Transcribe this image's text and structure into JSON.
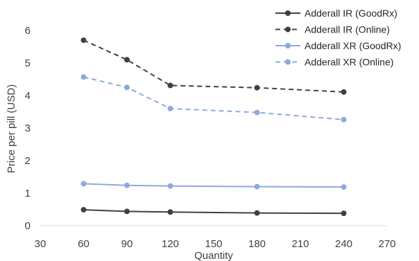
{
  "chart_data": {
    "type": "line",
    "title": "",
    "xlabel": "Quantity",
    "ylabel": "Price per pill (USD)",
    "xlim": [
      30,
      270
    ],
    "ylim": [
      0,
      6
    ],
    "x_ticks": [
      30,
      60,
      90,
      120,
      150,
      180,
      210,
      240,
      270
    ],
    "y_ticks": [
      0,
      1,
      2,
      3,
      4,
      5,
      6
    ],
    "grid": false,
    "legend_position": "top-right",
    "x": [
      60,
      90,
      120,
      180,
      240
    ],
    "series": [
      {
        "name": "Adderall IR (GoodRx)",
        "values": [
          0.49,
          0.44,
          0.42,
          0.39,
          0.38
        ],
        "color": "#404040",
        "dash": "solid"
      },
      {
        "name": "Adderall IR (Online)",
        "values": [
          5.7,
          5.1,
          4.31,
          4.24,
          4.11
        ],
        "color": "#404040",
        "dash": "dashed"
      },
      {
        "name": "Adderall XR (GoodRx)",
        "values": [
          1.29,
          1.24,
          1.22,
          1.2,
          1.19
        ],
        "color": "#8EA9DB",
        "dash": "solid"
      },
      {
        "name": "Adderall XR (Online)",
        "values": [
          4.57,
          4.25,
          3.6,
          3.48,
          3.26
        ],
        "color": "#8EA9DB",
        "dash": "dashed"
      }
    ]
  }
}
